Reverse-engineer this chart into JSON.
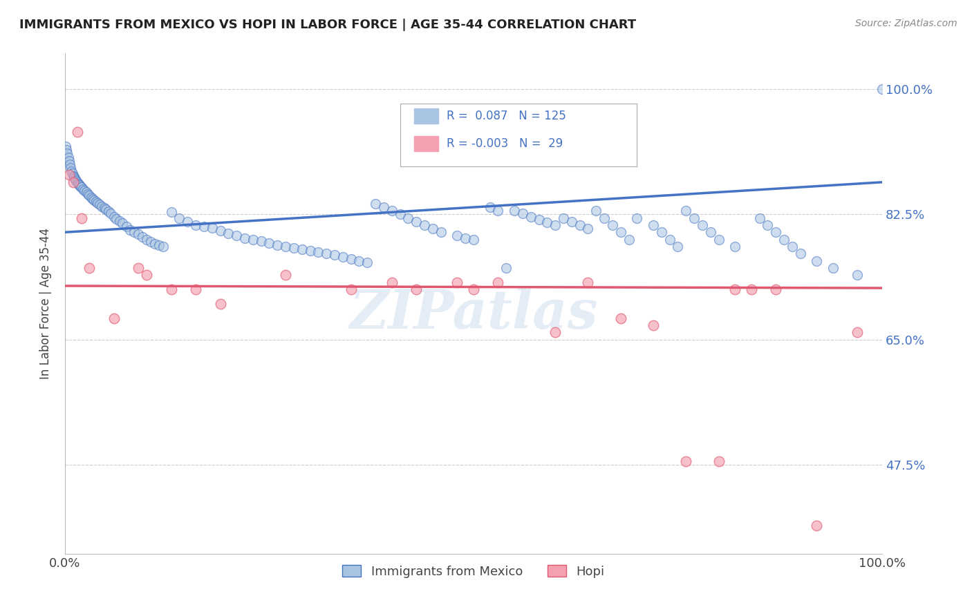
{
  "title": "IMMIGRANTS FROM MEXICO VS HOPI IN LABOR FORCE | AGE 35-44 CORRELATION CHART",
  "source": "Source: ZipAtlas.com",
  "ylabel": "In Labor Force | Age 35-44",
  "xlim": [
    0.0,
    1.0
  ],
  "ylim": [
    0.35,
    1.05
  ],
  "ytick_labels": [
    "47.5%",
    "65.0%",
    "82.5%",
    "100.0%"
  ],
  "ytick_values": [
    0.475,
    0.65,
    0.825,
    1.0
  ],
  "xtick_labels": [
    "0.0%",
    "100.0%"
  ],
  "xtick_values": [
    0.0,
    1.0
  ],
  "blue_R": 0.087,
  "blue_N": 125,
  "pink_R": -0.003,
  "pink_N": 29,
  "blue_color": "#a8c4e0",
  "pink_color": "#f4a0b0",
  "blue_line_color": "#4472c4",
  "pink_line_color": "#e05870",
  "legend_blue_label": "Immigrants from Mexico",
  "legend_pink_label": "Hopi",
  "blue_scatter_x": [
    0.001,
    0.002,
    0.003,
    0.004,
    0.005,
    0.006,
    0.007,
    0.008,
    0.009,
    0.01,
    0.011,
    0.012,
    0.013,
    0.014,
    0.015,
    0.016,
    0.017,
    0.018,
    0.019,
    0.02,
    0.022,
    0.024,
    0.026,
    0.028,
    0.03,
    0.032,
    0.034,
    0.036,
    0.038,
    0.04,
    0.042,
    0.045,
    0.048,
    0.05,
    0.053,
    0.056,
    0.06,
    0.063,
    0.067,
    0.07,
    0.075,
    0.08,
    0.085,
    0.09,
    0.095,
    0.1,
    0.105,
    0.11,
    0.115,
    0.12,
    0.13,
    0.14,
    0.15,
    0.16,
    0.17,
    0.18,
    0.19,
    0.2,
    0.21,
    0.22,
    0.23,
    0.24,
    0.25,
    0.26,
    0.27,
    0.28,
    0.29,
    0.3,
    0.31,
    0.32,
    0.33,
    0.34,
    0.35,
    0.36,
    0.37,
    0.38,
    0.39,
    0.4,
    0.41,
    0.42,
    0.43,
    0.44,
    0.45,
    0.46,
    0.48,
    0.49,
    0.5,
    0.52,
    0.53,
    0.54,
    0.55,
    0.56,
    0.57,
    0.58,
    0.59,
    0.6,
    0.61,
    0.62,
    0.63,
    0.64,
    0.65,
    0.66,
    0.67,
    0.68,
    0.69,
    0.7,
    0.72,
    0.73,
    0.74,
    0.75,
    0.76,
    0.77,
    0.78,
    0.79,
    0.8,
    0.82,
    0.85,
    0.86,
    0.87,
    0.88,
    0.89,
    0.9,
    0.92,
    0.94,
    0.97,
    1.0
  ],
  "blue_scatter_y": [
    0.92,
    0.915,
    0.91,
    0.905,
    0.9,
    0.895,
    0.89,
    0.885,
    0.882,
    0.879,
    0.878,
    0.876,
    0.874,
    0.872,
    0.87,
    0.868,
    0.867,
    0.866,
    0.864,
    0.863,
    0.86,
    0.858,
    0.856,
    0.853,
    0.851,
    0.849,
    0.847,
    0.845,
    0.843,
    0.841,
    0.839,
    0.836,
    0.834,
    0.832,
    0.829,
    0.826,
    0.822,
    0.819,
    0.816,
    0.813,
    0.808,
    0.803,
    0.8,
    0.797,
    0.794,
    0.79,
    0.787,
    0.784,
    0.782,
    0.78,
    0.828,
    0.82,
    0.815,
    0.81,
    0.808,
    0.806,
    0.802,
    0.798,
    0.795,
    0.792,
    0.79,
    0.788,
    0.785,
    0.782,
    0.78,
    0.778,
    0.776,
    0.774,
    0.772,
    0.77,
    0.768,
    0.766,
    0.763,
    0.76,
    0.758,
    0.84,
    0.835,
    0.83,
    0.825,
    0.82,
    0.815,
    0.81,
    0.805,
    0.8,
    0.795,
    0.792,
    0.79,
    0.835,
    0.83,
    0.75,
    0.83,
    0.826,
    0.822,
    0.818,
    0.814,
    0.81,
    0.82,
    0.815,
    0.81,
    0.805,
    0.83,
    0.82,
    0.81,
    0.8,
    0.79,
    0.82,
    0.81,
    0.8,
    0.79,
    0.78,
    0.83,
    0.82,
    0.81,
    0.8,
    0.79,
    0.78,
    0.82,
    0.81,
    0.8,
    0.79,
    0.78,
    0.77,
    0.76,
    0.75,
    0.74,
    1.0
  ],
  "pink_scatter_x": [
    0.005,
    0.01,
    0.015,
    0.02,
    0.03,
    0.06,
    0.09,
    0.1,
    0.13,
    0.16,
    0.19,
    0.27,
    0.35,
    0.4,
    0.43,
    0.48,
    0.5,
    0.53,
    0.6,
    0.64,
    0.68,
    0.72,
    0.76,
    0.8,
    0.82,
    0.84,
    0.87,
    0.92,
    0.97
  ],
  "pink_scatter_y": [
    0.88,
    0.87,
    0.94,
    0.82,
    0.75,
    0.68,
    0.75,
    0.74,
    0.72,
    0.72,
    0.7,
    0.74,
    0.72,
    0.73,
    0.72,
    0.73,
    0.72,
    0.73,
    0.66,
    0.73,
    0.68,
    0.67,
    0.48,
    0.48,
    0.72,
    0.72,
    0.72,
    0.39,
    0.66
  ],
  "blue_trendline_x": [
    0.0,
    1.0
  ],
  "blue_trendline_y": [
    0.8,
    0.87
  ],
  "pink_trendline_x": [
    0.0,
    1.0
  ],
  "pink_trendline_y": [
    0.725,
    0.722
  ],
  "watermark_text": "ZIPatlas",
  "background_color": "#ffffff",
  "grid_color": "#cccccc"
}
